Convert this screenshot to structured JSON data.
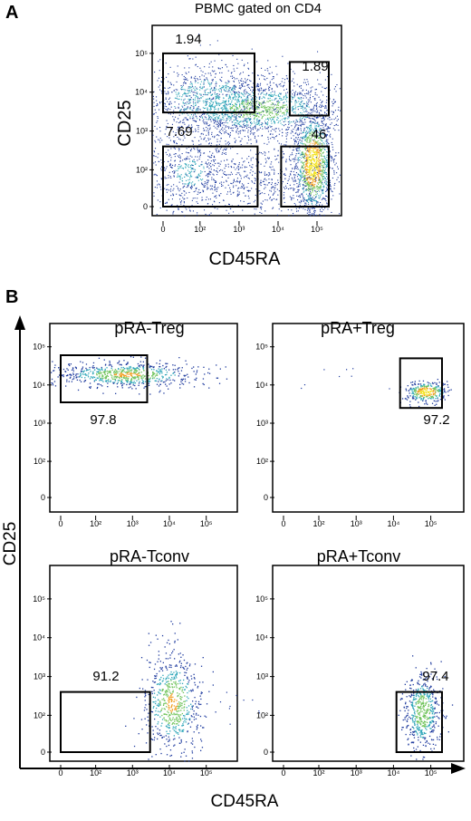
{
  "figure": {
    "panel_a_letter": "A",
    "panel_b_letter": "B",
    "panel_b_ylabel": "CD25",
    "panel_b_xlabel": "CD45RA"
  },
  "chart_data": [
    {
      "type": "scatter",
      "title": "PBMC gated on CD4",
      "xlabel": "CD45RA",
      "ylabel": "CD25",
      "scale": "biexponential (logicle)",
      "x_ticks": [
        "0",
        "10²",
        "10³",
        "10⁴",
        "10⁵"
      ],
      "y_ticks": [
        "0",
        "10²",
        "10³",
        "10⁴",
        "10⁵"
      ],
      "xlim": [
        0,
        200000
      ],
      "ylim": [
        0,
        200000
      ],
      "gates": [
        {
          "x": [
            0,
            2500
          ],
          "y": [
            3000,
            100000
          ],
          "value": "1.94"
        },
        {
          "x": [
            20000,
            200000
          ],
          "y": [
            2500,
            60000
          ],
          "value": "1.89"
        },
        {
          "x": [
            0,
            3000
          ],
          "y": [
            0,
            400
          ],
          "value": "7.69"
        },
        {
          "x": [
            12000,
            200000
          ],
          "y": [
            0,
            400
          ],
          "value": "46"
        }
      ],
      "density_hotspot": {
        "x": 40000,
        "y": 100
      }
    },
    {
      "type": "scatter",
      "title": "pRA-Treg",
      "x_ticks": [
        "0",
        "10²",
        "10³",
        "10⁴",
        "10⁵"
      ],
      "y_ticks": [
        "0",
        "10²",
        "10³",
        "10⁴",
        "10⁵"
      ],
      "gates": [
        {
          "x": [
            0,
            2500
          ],
          "y": [
            3500,
            60000
          ],
          "value": "97.8"
        }
      ]
    },
    {
      "type": "scatter",
      "title": "pRA+Treg",
      "x_ticks": [
        "0",
        "10²",
        "10³",
        "10⁴",
        "10⁵"
      ],
      "y_ticks": [
        "0",
        "10²",
        "10³",
        "10⁴",
        "10⁵"
      ],
      "gates": [
        {
          "x": [
            15000,
            200000
          ],
          "y": [
            2500,
            50000
          ],
          "value": "97.2"
        }
      ]
    },
    {
      "type": "scatter",
      "title": "pRA-Tconv",
      "x_ticks": [
        "0",
        "10²",
        "10³",
        "10⁴",
        "10⁵"
      ],
      "y_ticks": [
        "0",
        "10²",
        "10³",
        "10⁴",
        "10⁵"
      ],
      "gates": [
        {
          "x": [
            0,
            3000
          ],
          "y": [
            0,
            400
          ],
          "value": "91.2"
        }
      ]
    },
    {
      "type": "scatter",
      "title": "pRA+Tconv",
      "x_ticks": [
        "0",
        "10²",
        "10³",
        "10⁴",
        "10⁵"
      ],
      "y_ticks": [
        "0",
        "10²",
        "10³",
        "10⁴",
        "10⁵"
      ],
      "gates": [
        {
          "x": [
            12000,
            200000
          ],
          "y": [
            0,
            400
          ],
          "value": "97.4"
        }
      ]
    }
  ]
}
